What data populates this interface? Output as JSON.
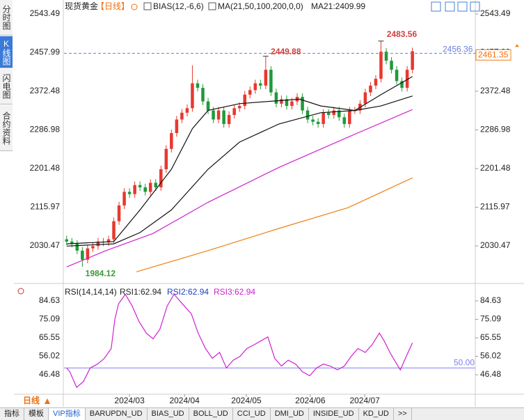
{
  "sidebar": [
    "分时图",
    "K线图",
    "闪电图",
    "合约资料"
  ],
  "legend": {
    "symbol": "现货黄金",
    "period": "【日线】",
    "bias": "BIAS(12,-6,6)",
    "ma": "MA(21,50,100,200,0,0)",
    "ma21": "MA21:2409.99"
  },
  "rsi_legend": [
    "RSI(14,14,14)",
    "RSI1:62.94",
    "RSI2:62.94",
    "RSI3:62.94"
  ],
  "period_button": "日线",
  "tabs": [
    "指标",
    "模板",
    "VIP指标",
    "BARUPDN_UD",
    "BIAS_UD",
    "BOLL_UD",
    "CCI_UD",
    "DMI_UD",
    "INSIDE_UD",
    "KD_UD",
    ">>"
  ],
  "chart_data": [
    {
      "type": "candlestick",
      "up_color": "#e8382f",
      "down_color": "#1f9a3a",
      "xlim": [
        -0.5,
        78
      ],
      "ylim": [
        1950.4,
        2566.6
      ],
      "yticks": [
        2030.47,
        2115.97,
        2201.48,
        2286.98,
        2372.48,
        2457.99,
        2543.49
      ],
      "x": [
        0,
        1,
        2,
        3,
        4,
        5,
        6,
        7,
        8,
        9,
        10,
        11,
        12,
        13,
        14,
        15,
        16,
        17,
        18,
        19,
        20,
        21,
        22,
        23,
        24,
        25,
        26,
        27,
        28,
        29,
        30,
        31,
        32,
        33,
        34,
        35,
        36,
        37,
        38,
        39,
        40,
        41,
        42,
        43,
        44,
        45,
        46,
        47,
        48,
        49,
        50,
        51,
        52,
        53,
        54,
        55,
        56,
        57,
        58,
        59,
        60,
        61,
        62,
        63,
        64,
        65,
        66
      ],
      "open": [
        2045,
        2040,
        2035,
        2020,
        2000,
        2025,
        2030,
        2040,
        2038,
        2045,
        2085,
        2120,
        2150,
        2145,
        2165,
        2160,
        2150,
        2170,
        2160,
        2200,
        2245,
        2280,
        2310,
        2325,
        2335,
        2390,
        2380,
        2350,
        2330,
        2310,
        2330,
        2300,
        2320,
        2335,
        2340,
        2365,
        2375,
        2390,
        2385,
        2420,
        2370,
        2345,
        2355,
        2340,
        2350,
        2360,
        2330,
        2310,
        2305,
        2300,
        2325,
        2320,
        2330,
        2315,
        2300,
        2330,
        2330,
        2345,
        2370,
        2385,
        2400,
        2460,
        2440,
        2420,
        2395,
        2380,
        2420
      ],
      "high": [
        2053,
        2048,
        2043,
        2028,
        2033,
        2038,
        2048,
        2048,
        2053,
        2093,
        2128,
        2158,
        2158,
        2173,
        2173,
        2168,
        2178,
        2178,
        2208,
        2253,
        2288,
        2318,
        2333,
        2343,
        2430,
        2398,
        2388,
        2358,
        2338,
        2338,
        2338,
        2328,
        2343,
        2348,
        2373,
        2383,
        2398,
        2398,
        2449.88,
        2428,
        2378,
        2363,
        2363,
        2358,
        2368,
        2368,
        2338,
        2318,
        2313,
        2333,
        2333,
        2338,
        2338,
        2323,
        2338,
        2338,
        2353,
        2378,
        2393,
        2408,
        2483.56,
        2468,
        2448,
        2428,
        2403,
        2428,
        2469
      ],
      "low": [
        2032,
        2027,
        2012,
        1984.12,
        1992,
        2017,
        2022,
        2030,
        2030,
        2037,
        2077,
        2112,
        2137,
        2137,
        2152,
        2142,
        2142,
        2152,
        2152,
        2192,
        2237,
        2272,
        2302,
        2317,
        2327,
        2372,
        2342,
        2322,
        2302,
        2302,
        2292,
        2292,
        2312,
        2327,
        2332,
        2357,
        2367,
        2377,
        2377,
        2362,
        2337,
        2337,
        2332,
        2332,
        2342,
        2322,
        2302,
        2297,
        2292,
        2292,
        2312,
        2312,
        2307,
        2292,
        2292,
        2322,
        2322,
        2337,
        2362,
        2377,
        2392,
        2432,
        2412,
        2387,
        2372,
        2372,
        2412
      ],
      "close": [
        2040,
        2035,
        2020,
        2000,
        2025,
        2030,
        2040,
        2038,
        2045,
        2085,
        2120,
        2150,
        2145,
        2165,
        2160,
        2150,
        2170,
        2160,
        2200,
        2245,
        2280,
        2310,
        2325,
        2335,
        2390,
        2380,
        2350,
        2330,
        2310,
        2330,
        2300,
        2320,
        2335,
        2340,
        2365,
        2375,
        2390,
        2385,
        2420,
        2370,
        2345,
        2355,
        2340,
        2350,
        2360,
        2330,
        2310,
        2305,
        2300,
        2325,
        2320,
        2330,
        2315,
        2300,
        2330,
        2330,
        2345,
        2370,
        2385,
        2400,
        2460,
        2440,
        2420,
        2395,
        2380,
        2420,
        2461
      ],
      "ma_lines": [
        {
          "color": "#111111",
          "x": [
            0,
            9,
            14,
            20,
            24,
            27,
            33,
            38.5,
            44.5,
            48.5,
            55,
            60,
            66
          ],
          "values": [
            2035,
            2040,
            2110,
            2200,
            2290,
            2330,
            2345,
            2350,
            2355,
            2340,
            2330,
            2365,
            2405
          ]
        },
        {
          "color": "#111111",
          "x": [
            0,
            9,
            14,
            20,
            27,
            33,
            40.5,
            48.5,
            55,
            60,
            66
          ],
          "values": [
            2030,
            2035,
            2060,
            2110,
            2200,
            2260,
            2300,
            2325,
            2330,
            2340,
            2362
          ]
        },
        {
          "color": "#d020d0",
          "x": [
            0,
            7.5,
            16.5,
            27,
            40.5,
            53.7,
            66
          ],
          "values": [
            1984,
            2020,
            2058,
            2127,
            2204,
            2271,
            2332
          ]
        },
        {
          "color": "#f08010",
          "x": [
            13.3,
            27,
            40.5,
            53.7,
            66
          ],
          "values": [
            1973,
            2020,
            2069,
            2115,
            2181
          ]
        }
      ],
      "ref_line": {
        "value": 2456.36,
        "color": "#6a7fe0"
      },
      "last_price": 2461.35
    },
    {
      "type": "line",
      "color": "#d020d0",
      "xlim": [
        -0.5,
        78
      ],
      "ylim": [
        36.8,
        92.5
      ],
      "yticks": [
        46.48,
        56.02,
        65.55,
        75.09,
        84.63
      ],
      "xticks": [
        {
          "value": 12,
          "label": "2024/03"
        },
        {
          "value": 22.5,
          "label": "2024/04"
        },
        {
          "value": 34.3,
          "label": "2024/05"
        },
        {
          "value": 46.5,
          "label": "2024/06"
        },
        {
          "value": 56.9,
          "label": "2024/07"
        }
      ],
      "x": [
        0,
        0.6,
        1.9,
        3.2,
        4.5,
        5.9,
        7.2,
        8.5,
        9.2,
        9.9,
        11.2,
        12.5,
        13.8,
        15.2,
        16.5,
        17.8,
        19.2,
        20.5,
        21.8,
        23.1,
        23.8,
        25.1,
        26.5,
        27.8,
        29.2,
        30.5,
        31.8,
        33.1,
        34.4,
        35.8,
        37.1,
        38.4,
        39.7,
        41,
        42.3,
        43.7,
        45,
        46.4,
        47.7,
        49,
        50.3,
        51.7,
        53,
        54.3,
        55.6,
        57,
        58.3,
        59.7,
        60.6,
        61.7,
        63,
        63.7,
        65,
        66
      ],
      "values": [
        50,
        48,
        40,
        43,
        50,
        52,
        55,
        60,
        75,
        83,
        88,
        82,
        74,
        68,
        65,
        70,
        82,
        88,
        84,
        80,
        78,
        68,
        60,
        55,
        58,
        50,
        54,
        56,
        60,
        62,
        64,
        66,
        55,
        51,
        54,
        52,
        48,
        46,
        50,
        52,
        51,
        49,
        51,
        56,
        60,
        58,
        62,
        68,
        64,
        58,
        52,
        49,
        57,
        62.94
      ],
      "reference": {
        "value": 50,
        "label": "50.00",
        "color": "#7d7df0"
      }
    }
  ]
}
